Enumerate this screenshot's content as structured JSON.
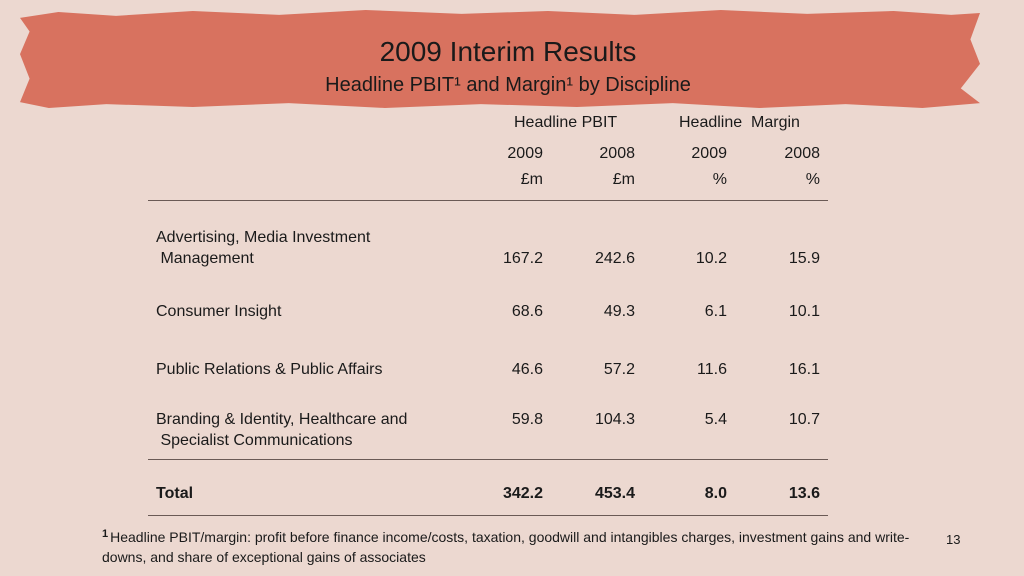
{
  "slide": {
    "title": "2009 Interim Results",
    "subtitle": "Headline PBIT¹ and Margin¹ by Discipline",
    "page_number": "13"
  },
  "table": {
    "group_headers": {
      "pbit": "Headline PBIT",
      "margin": "Headline  Margin"
    },
    "year_headers": [
      "2009",
      "2008",
      "2009",
      "2008"
    ],
    "unit_headers": [
      "£m",
      "£m",
      "%",
      "%"
    ],
    "rows": [
      {
        "label_line1": "Advertising, Media Investment",
        "label_line2": " Management",
        "values": [
          "167.2",
          "242.6",
          "10.2",
          "15.9"
        ]
      },
      {
        "label_line1": "Consumer Insight",
        "label_line2": "",
        "values": [
          "68.6",
          "49.3",
          "6.1",
          "10.1"
        ]
      },
      {
        "label_line1": "Public Relations & Public Affairs",
        "label_line2": "",
        "values": [
          "46.6",
          "57.2",
          "11.6",
          "16.1"
        ]
      },
      {
        "label_line1": "Branding & Identity, Healthcare and",
        "label_line2": " Specialist Communications",
        "values": [
          "59.8",
          "104.3",
          "5.4",
          "10.7"
        ]
      }
    ],
    "total": {
      "label": "Total",
      "values": [
        "342.2",
        "453.4",
        "8.0",
        "13.6"
      ]
    }
  },
  "footnote": {
    "marker": "1",
    "text": "Headline PBIT/margin: profit before finance income/costs, taxation, goodwill and intangibles charges, investment gains and write-downs, and share of exceptional gains of associates"
  },
  "colors": {
    "background": "#ecd8d0",
    "banner": "#d8725f",
    "text": "#1a1a1a",
    "rule": "#6a5a55"
  }
}
